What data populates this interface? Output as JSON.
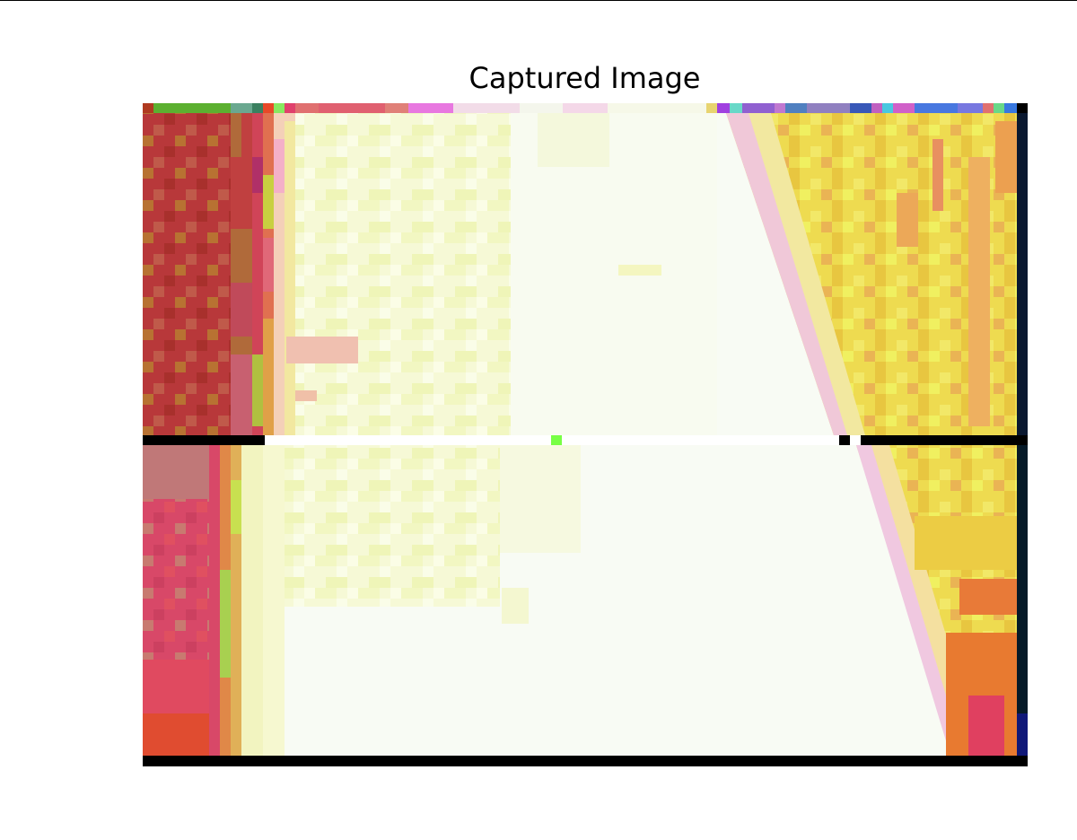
{
  "figure": {
    "title": "Captured Image"
  },
  "image": {
    "description_colors": {
      "left_band_red": "#b83232",
      "left_band_ochre": "#b07030",
      "left_band_pink": "#d84a6a",
      "top_strip_green": "#5cb030",
      "center_cream": "#f8fbdc",
      "center_white": "#f8fbf4",
      "right_band_yellow": "#eed448",
      "right_band_orange": "#e87a30",
      "edge_navy": "#071830",
      "separator_black": "#000000",
      "marker_green": "#77ff44"
    }
  }
}
